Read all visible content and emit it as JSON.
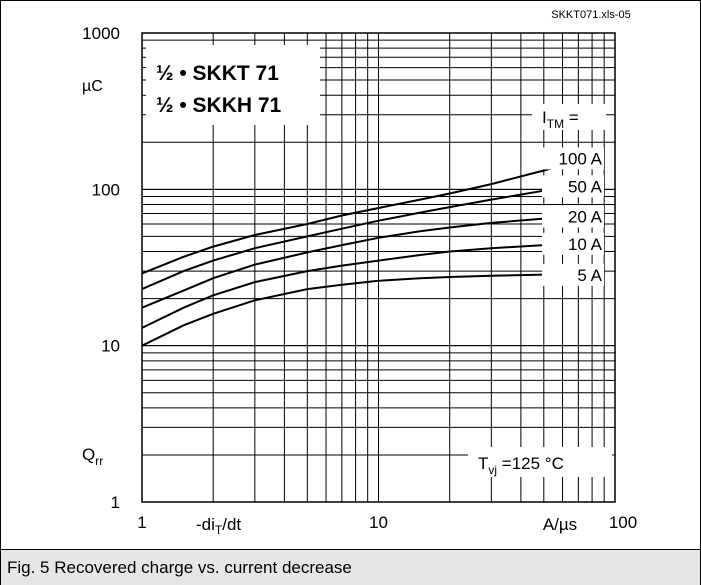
{
  "file_ref": "SKKT071.xls-05",
  "caption": "Fig. 5 Recovered charge vs. current decrease",
  "chart_data": {
    "type": "line",
    "title": "",
    "devices": [
      "½ • SKKT 71",
      "½ • SKKH 71"
    ],
    "x_scale": "log",
    "y_scale": "log",
    "xlim": [
      1,
      100
    ],
    "ylim": [
      1,
      1000
    ],
    "x_ticks": [
      "1",
      "10",
      "100"
    ],
    "y_ticks": [
      "1",
      "10",
      "100",
      "1000"
    ],
    "xlabel_sym": "-di",
    "xlabel_sub": "T",
    "xlabel_tail": "/dt",
    "x_unit": "A/µs",
    "ylabel_sym": "Q",
    "ylabel_sub": "rr",
    "y_unit": "µC",
    "legend_sym": "I",
    "legend_sub": "TM",
    "legend_tail": " =",
    "condition_sym": "T",
    "condition_sub": "vj",
    "condition_tail": " =125 °C",
    "grid": true,
    "series": [
      {
        "name": "100 A",
        "x": [
          1,
          1.5,
          2,
          3,
          5,
          7,
          10,
          15,
          20,
          30,
          50,
          70,
          80
        ],
        "y": [
          29,
          37,
          43,
          51,
          60,
          68,
          76,
          86,
          94,
          108,
          132,
          152,
          160
        ]
      },
      {
        "name": "50 A",
        "x": [
          1,
          1.5,
          2,
          3,
          5,
          7,
          10,
          15,
          20,
          30,
          50,
          70,
          80
        ],
        "y": [
          23,
          30,
          35,
          42,
          50,
          56,
          63,
          71,
          77,
          86,
          98,
          104,
          106
        ]
      },
      {
        "name": "20 A",
        "x": [
          1,
          1.5,
          2,
          3,
          5,
          7,
          10,
          15,
          20,
          30,
          50,
          70,
          80
        ],
        "y": [
          17.5,
          22.5,
          27,
          33,
          39.5,
          44,
          49,
          54,
          57,
          61,
          65,
          67,
          68
        ]
      },
      {
        "name": "10 A",
        "x": [
          1,
          1.5,
          2,
          3,
          5,
          7,
          10,
          15,
          20,
          30,
          50,
          70,
          80
        ],
        "y": [
          13,
          17.5,
          21,
          25.5,
          30,
          32.5,
          35,
          38,
          40,
          42,
          44,
          45,
          45.5
        ]
      },
      {
        "name": "5 A",
        "x": [
          1,
          1.5,
          2,
          3,
          5,
          7,
          10,
          15,
          20,
          30,
          50,
          70,
          80
        ],
        "y": [
          10,
          13.5,
          16,
          19.5,
          23,
          24.5,
          26,
          27,
          27.5,
          28,
          28.5,
          28.7,
          28.8
        ]
      }
    ]
  }
}
